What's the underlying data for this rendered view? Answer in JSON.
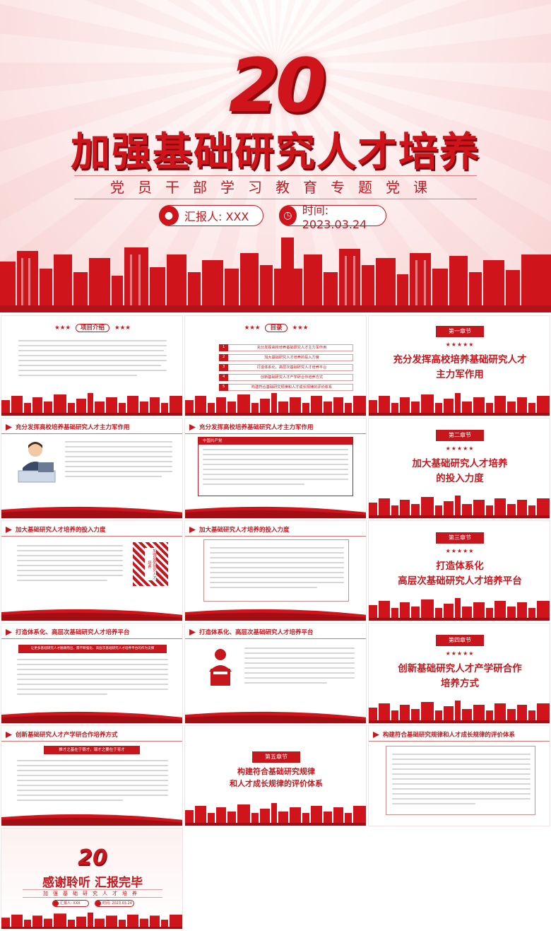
{
  "cover": {
    "number": "20",
    "title": "加强基础研究人才培养",
    "subtitle": "党员干部学习教育专题党课",
    "reporter_label": "汇报人: XXX",
    "date_label": "时间: 2023.03.24"
  },
  "slides": {
    "intro": {
      "heading": "项目介绍",
      "stars": "★★★"
    },
    "toc": {
      "heading": "目录",
      "stars": "★★★",
      "items": [
        {
          "num": "1",
          "text": "充分发挥高校培养基础研究人才主力军作用"
        },
        {
          "num": "2",
          "text": "加大基础研究人才培养的投入力度"
        },
        {
          "num": "3",
          "text": "打造体系化、高层次基础研究人才培养平台"
        },
        {
          "num": "4",
          "text": "创新基础研究人才产学研合作培养方式"
        },
        {
          "num": "5",
          "text": "构建符合基础研究规律和人才成长规律的评价体系"
        }
      ]
    },
    "chapter1": {
      "badge": "第一章节",
      "stars": "★★★★★",
      "title_line1": "充分发挥高校培养基础研究人才",
      "title_line2": "主力军作用"
    },
    "chapter2": {
      "badge": "第二章节",
      "stars": "★★★★★",
      "title_line1": "加大基础研究人才培养",
      "title_line2": "的投入力度"
    },
    "chapter3": {
      "badge": "第三章节",
      "stars": "★★★★★",
      "title_line1": "打造体系化",
      "title_line2": "高层次基础研究人才培养平台"
    },
    "chapter4": {
      "badge": "第四章节",
      "stars": "★★★★★",
      "title_line1": "创新基础研究人才产学研合作",
      "title_line2": "培养方式"
    },
    "chapter5": {
      "badge": "第五章节",
      "title_line1": "构建符合基础研究规律",
      "title_line2": "和人才成长规律的评价体系"
    },
    "content_heads": {
      "c1": "充分发挥高校培养基础研究人才主力军作用",
      "c2": "加大基础研究人才培养的投入力度",
      "c3": "打造体系化、高层次基础研究人才培养平台",
      "c4": "创新基础研究人才产学研合作培养方式",
      "c5": "构建符合基础研究规律和人才成长规律的评价体系"
    },
    "box_labels": {
      "party": "中国共产党",
      "vertical": "加强基础研究人才培养",
      "platform": "让更多基础研究人才脱颖而出，需不断强化、高层次基础研究人才培养平台的作为支撑",
      "cooperation": "推才之基在于锻才，锻才之要在于育才"
    },
    "ending": {
      "number": "20",
      "title": "感谢聆听  汇报完毕",
      "subtitle": "加强基础研究人才培养",
      "reporter": "汇报人: XXX",
      "date": "时间: 2023.03.24"
    }
  },
  "colors": {
    "primary": "#c8161d",
    "dark": "#7d0a0e",
    "bg": "#fdecec"
  }
}
